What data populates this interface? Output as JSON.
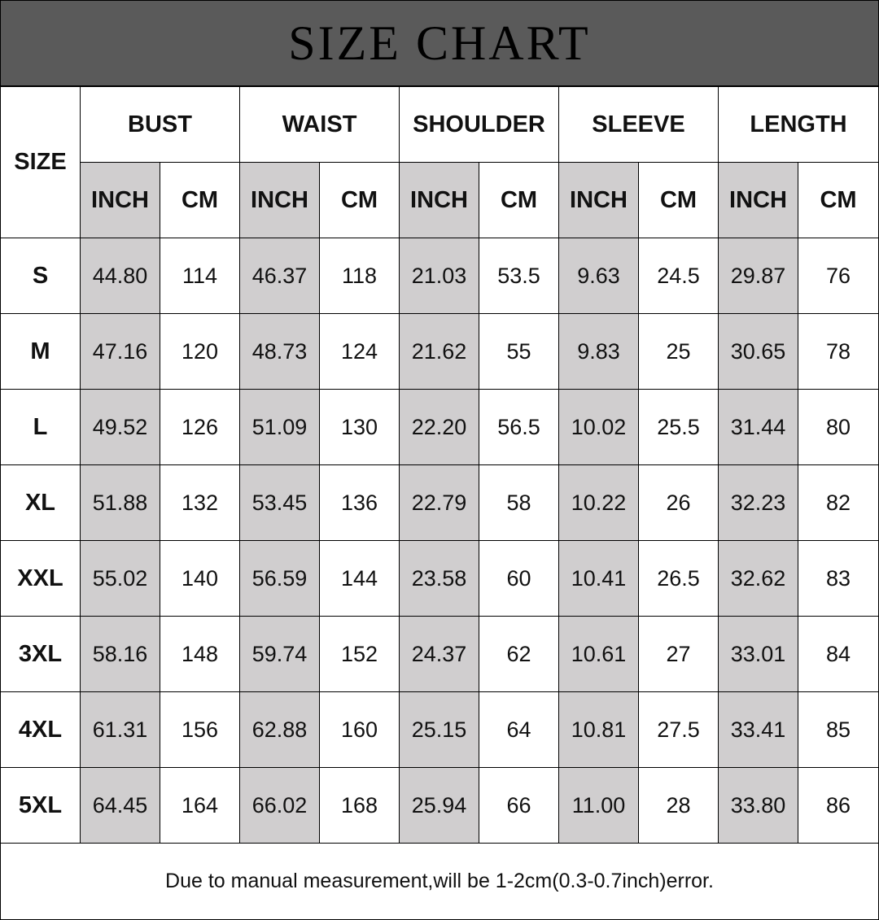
{
  "title": "SIZE CHART",
  "colors": {
    "title_bg": "#5a5a5a",
    "inch_bg": "#d0cecf"
  },
  "chart_data": {
    "type": "table",
    "size_header": "SIZE",
    "groups": [
      "BUST",
      "WAIST",
      "SHOULDER",
      "SLEEVE",
      "LENGTH"
    ],
    "units": [
      "INCH",
      "CM"
    ],
    "rows": [
      {
        "size": "S",
        "values": [
          "44.80",
          "114",
          "46.37",
          "118",
          "21.03",
          "53.5",
          "9.63",
          "24.5",
          "29.87",
          "76"
        ]
      },
      {
        "size": "M",
        "values": [
          "47.16",
          "120",
          "48.73",
          "124",
          "21.62",
          "55",
          "9.83",
          "25",
          "30.65",
          "78"
        ]
      },
      {
        "size": "L",
        "values": [
          "49.52",
          "126",
          "51.09",
          "130",
          "22.20",
          "56.5",
          "10.02",
          "25.5",
          "31.44",
          "80"
        ]
      },
      {
        "size": "XL",
        "values": [
          "51.88",
          "132",
          "53.45",
          "136",
          "22.79",
          "58",
          "10.22",
          "26",
          "32.23",
          "82"
        ]
      },
      {
        "size": "XXL",
        "values": [
          "55.02",
          "140",
          "56.59",
          "144",
          "23.58",
          "60",
          "10.41",
          "26.5",
          "32.62",
          "83"
        ]
      },
      {
        "size": "3XL",
        "values": [
          "58.16",
          "148",
          "59.74",
          "152",
          "24.37",
          "62",
          "10.61",
          "27",
          "33.01",
          "84"
        ]
      },
      {
        "size": "4XL",
        "values": [
          "61.31",
          "156",
          "62.88",
          "160",
          "25.15",
          "64",
          "10.81",
          "27.5",
          "33.41",
          "85"
        ]
      },
      {
        "size": "5XL",
        "values": [
          "64.45",
          "164",
          "66.02",
          "168",
          "25.94",
          "66",
          "11.00",
          "28",
          "33.80",
          "86"
        ]
      }
    ]
  },
  "note": "Due to manual measurement,will be 1-2cm(0.3-0.7inch)error."
}
